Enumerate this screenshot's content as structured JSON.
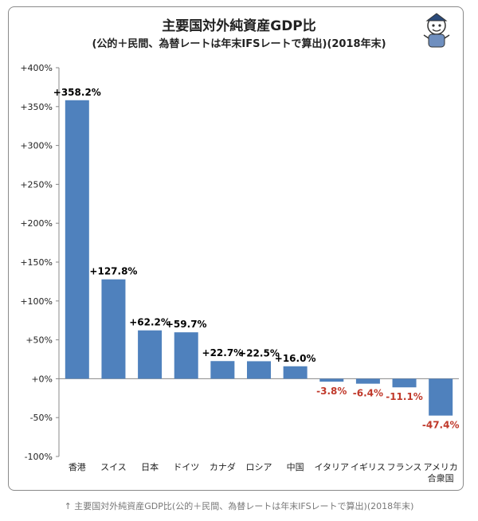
{
  "title": "主要国対外純資産GDP比",
  "subtitle": "(公的＋民間、為替レートは年末IFSレートで算出)(2018年末)",
  "caption": "↑ 主要国対外純資産GDP比(公的＋民間、為替レートは年末IFSレートで算出)(2018年末)",
  "colors": {
    "bar": "#4f81bd",
    "positive_label": "#000000",
    "negative_label": "#c0392b"
  },
  "chart_data": {
    "type": "bar",
    "categories": [
      [
        "香港"
      ],
      [
        "スイス"
      ],
      [
        "日本"
      ],
      [
        "ドイツ"
      ],
      [
        "カナダ"
      ],
      [
        "ロシア"
      ],
      [
        "中国"
      ],
      [
        "イタリア"
      ],
      [
        "イギリス"
      ],
      [
        "フランス"
      ],
      [
        "アメリカ",
        "合衆国"
      ]
    ],
    "values": [
      358.2,
      127.8,
      62.2,
      59.7,
      22.7,
      22.5,
      16.0,
      -3.8,
      -6.4,
      -11.1,
      -47.4
    ],
    "value_labels": [
      "+358.2%",
      "+127.8%",
      "+62.2%",
      "+59.7%",
      "+22.7%",
      "+22.5%",
      "+16.0%",
      "-3.8%",
      "-6.4%",
      "-11.1%",
      "-47.4%"
    ],
    "ylim": [
      -100,
      400
    ],
    "yticks": [
      400,
      350,
      300,
      250,
      200,
      150,
      100,
      50,
      0,
      -50,
      -100
    ],
    "ytick_labels": [
      "+400%",
      "+350%",
      "+300%",
      "+250%",
      "+200%",
      "+150%",
      "+100%",
      "+50%",
      "+0%",
      "-50%",
      "-100%"
    ],
    "grid": false,
    "legend": "none"
  }
}
